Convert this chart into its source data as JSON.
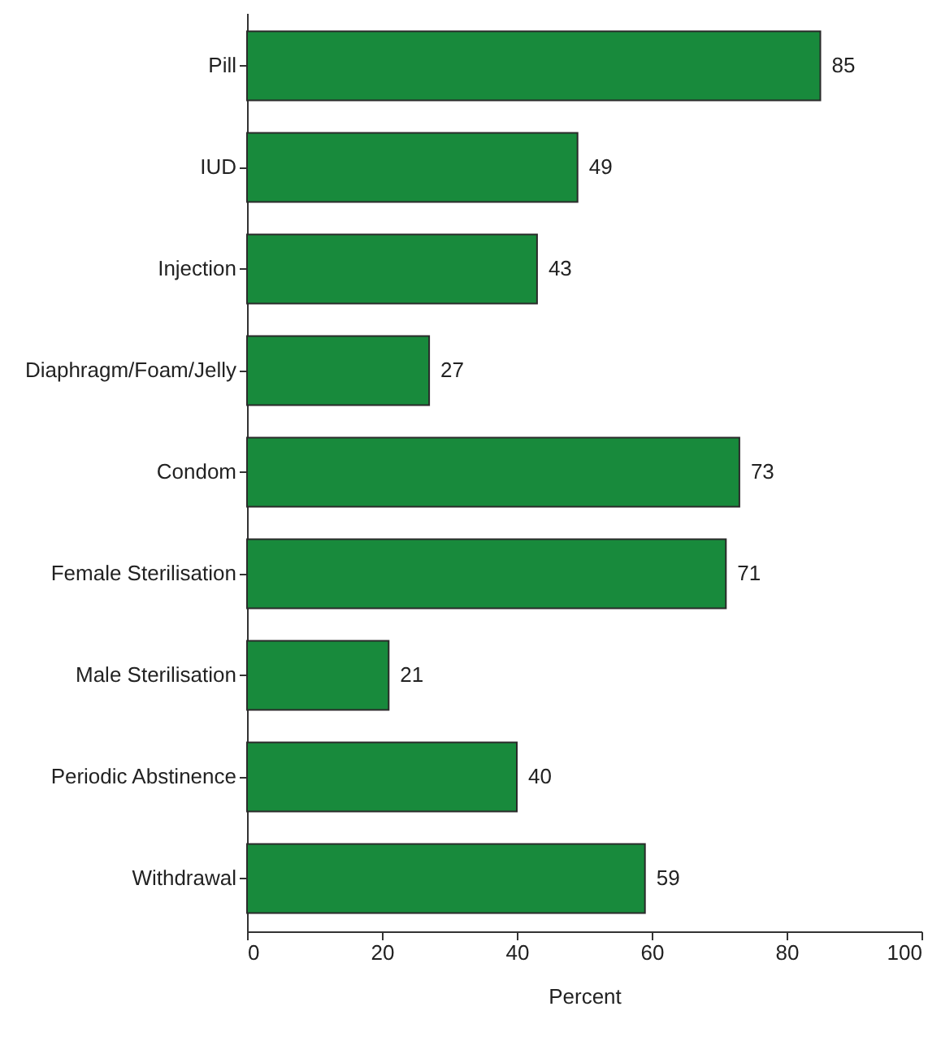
{
  "chart_data": {
    "type": "bar",
    "orientation": "horizontal",
    "xlabel": "Percent",
    "categories": [
      "Pill",
      "IUD",
      "Injection",
      "Diaphragm/Foam/Jelly",
      "Condom",
      "Female Sterilisation",
      "Male Sterilisation",
      "Periodic Abstinence",
      "Withdrawal"
    ],
    "values": [
      85,
      49,
      43,
      27,
      73,
      71,
      21,
      40,
      59
    ],
    "color": "#188a3c",
    "xlim": [
      0,
      100
    ],
    "xticks": [
      0,
      20,
      40,
      60,
      80,
      100
    ],
    "data_labels": true
  }
}
